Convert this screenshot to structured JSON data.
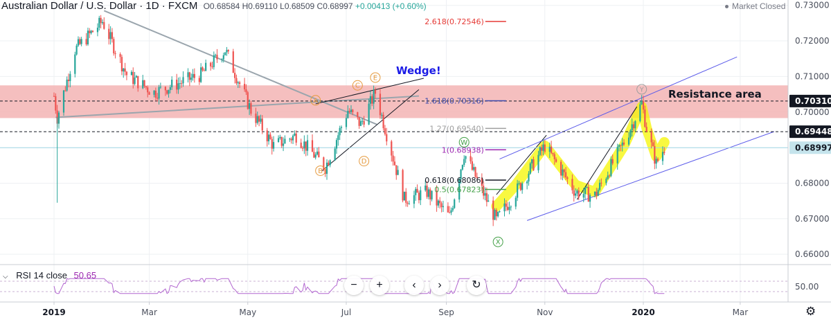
{
  "header": {
    "symbol": "Australian Dollar / U.S. Dollar · 1D · FXCM",
    "open": "O0.68584",
    "high": "H0.69110",
    "low": "L0.68509",
    "close": "C0.68997",
    "change": "+0.00413 (+0.60%)",
    "market_status": "Market Closed"
  },
  "rsi": {
    "label": "RSI 14 close",
    "value": "50.65",
    "level": "50.00"
  },
  "colors": {
    "bull": "#26a69a",
    "bear": "#ef5350",
    "resistance": "#f4b8b8",
    "highlight": "#f5f500",
    "channel": "#5b5bea",
    "rsi": "#b266d0"
  },
  "chart_data": {
    "type": "candlestick",
    "ylim": [
      0.6575,
      0.7315
    ],
    "y_ticks": [
      "0.73000",
      "0.72000",
      "0.71000",
      "0.70000",
      "0.69000",
      "0.68000",
      "0.67000",
      "0.66000"
    ],
    "x_ticks": [
      "2019",
      "Mar",
      "May",
      "Jul",
      "Sep",
      "Nov",
      "2020",
      "Mar"
    ],
    "price_tags": [
      {
        "label": "0.70310",
        "value": 0.7031,
        "style": "dark"
      },
      {
        "label": "0.69448",
        "value": 0.69448,
        "style": "dark"
      },
      {
        "label": "0.68997",
        "value": 0.68997,
        "style": "last"
      }
    ],
    "resistance_zone": {
      "label": "Resistance area",
      "from": 0.6983,
      "to": 0.7075
    },
    "fib_levels": [
      {
        "label": "2.618(0.72546)",
        "value": 0.72546,
        "color": "#e53935"
      },
      {
        "label": "1.618(0.70316)",
        "value": 0.70316,
        "color": "#3949ab"
      },
      {
        "label": "1.27(0.69540)",
        "value": 0.6954,
        "color": "#9e9e9e"
      },
      {
        "label": "1(0.68938)",
        "value": 0.68938,
        "color": "#9c27b0"
      },
      {
        "label": "0.618(0.68086)",
        "value": 0.68086,
        "color": "#131722"
      },
      {
        "label": "0.5(0.67823)",
        "value": 0.67823,
        "color": "#43a047"
      }
    ],
    "annotations": {
      "wedge": "Wedge!",
      "waves": [
        "A",
        "B",
        "C",
        "D",
        "E",
        "W",
        "X",
        "Y"
      ]
    },
    "rsi_value": 50.65,
    "anchors": [
      {
        "date": "2019-01-01",
        "price": 0.7045
      },
      {
        "date": "2019-01-03",
        "price": 0.6985
      },
      {
        "date": "2019-01-14",
        "price": 0.7175
      },
      {
        "date": "2019-01-31",
        "price": 0.7255
      },
      {
        "date": "2019-02-15",
        "price": 0.7105
      },
      {
        "date": "2019-03-04",
        "price": 0.7055
      },
      {
        "date": "2019-04-02",
        "price": 0.7105
      },
      {
        "date": "2019-04-17",
        "price": 0.7175
      },
      {
        "date": "2019-05-03",
        "price": 0.7005
      },
      {
        "date": "2019-05-17",
        "price": 0.6905
      },
      {
        "date": "2019-05-31",
        "price": 0.6935
      },
      {
        "date": "2019-06-18",
        "price": 0.6845
      },
      {
        "date": "2019-07-02",
        "price": 0.7005
      },
      {
        "date": "2019-07-10",
        "price": 0.6965
      },
      {
        "date": "2019-07-19",
        "price": 0.7055
      },
      {
        "date": "2019-08-06",
        "price": 0.6755
      },
      {
        "date": "2019-08-20",
        "price": 0.6775
      },
      {
        "date": "2019-09-03",
        "price": 0.6705
      },
      {
        "date": "2019-09-12",
        "price": 0.6885
      },
      {
        "date": "2019-10-02",
        "price": 0.6695
      },
      {
        "date": "2019-10-14",
        "price": 0.6775
      },
      {
        "date": "2019-11-01",
        "price": 0.6905
      },
      {
        "date": "2019-11-20",
        "price": 0.6775
      },
      {
        "date": "2019-12-02",
        "price": 0.6765
      },
      {
        "date": "2019-12-20",
        "price": 0.6915
      },
      {
        "date": "2019-12-31",
        "price": 0.7025
      },
      {
        "date": "2020-01-03",
        "price": 0.6955
      },
      {
        "date": "2020-01-09",
        "price": 0.6855
      },
      {
        "date": "2020-01-14",
        "price": 0.69
      }
    ]
  }
}
